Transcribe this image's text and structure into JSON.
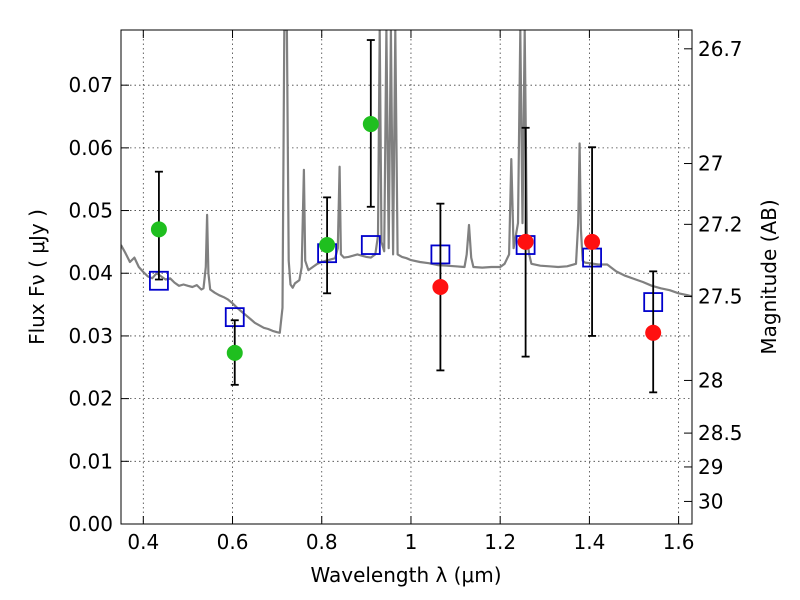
{
  "chart_data": {
    "type": "scatter",
    "title": "",
    "xlabel": "Wavelength  λ (μm)",
    "ylabel": "Flux  Fν  ( μJy )",
    "y2label": "Magnitude (AB)",
    "xlim": [
      0.35,
      1.63
    ],
    "ylim": [
      0.0,
      0.0788
    ],
    "x_ticks": [
      0.4,
      0.6,
      0.8,
      1.0,
      1.2,
      1.4,
      1.6
    ],
    "x_tick_labels": [
      "0.4",
      "0.6",
      "0.8",
      "1",
      "1.2",
      "1.4",
      "1.6"
    ],
    "y_ticks": [
      0.0,
      0.01,
      0.02,
      0.03,
      0.04,
      0.05,
      0.06,
      0.07
    ],
    "y_tick_labels": [
      "0.00",
      "0.01",
      "0.02",
      "0.03",
      "0.04",
      "0.05",
      "0.06",
      "0.07"
    ],
    "y2_ticks": [
      {
        "label": "26.7",
        "flux": 0.0758
      },
      {
        "label": "27",
        "flux": 0.0575
      },
      {
        "label": "27.2",
        "flux": 0.0478
      },
      {
        "label": "27.5",
        "flux": 0.0363
      },
      {
        "label": "28",
        "flux": 0.0229
      },
      {
        "label": "28.5",
        "flux": 0.0145
      },
      {
        "label": "29",
        "flux": 0.0091
      },
      {
        "label": "30",
        "flux": 0.0036
      }
    ],
    "grid": true,
    "colors": {
      "spectrum": "#808080",
      "green": "#1fbf1f",
      "red": "#ff1010",
      "model_box": "#0000cc",
      "errorbar": "#000000"
    },
    "series": [
      {
        "kind": "line",
        "color": "#808080",
        "points": [
          [
            0.35,
            0.0445
          ],
          [
            0.36,
            0.0432
          ],
          [
            0.37,
            0.0418
          ],
          [
            0.38,
            0.0425
          ],
          [
            0.39,
            0.041
          ],
          [
            0.4,
            0.0402
          ],
          [
            0.41,
            0.0395
          ],
          [
            0.42,
            0.0392
          ],
          [
            0.43,
            0.04
          ],
          [
            0.44,
            0.0395
          ],
          [
            0.45,
            0.039
          ],
          [
            0.46,
            0.0392
          ],
          [
            0.47,
            0.0385
          ],
          [
            0.48,
            0.038
          ],
          [
            0.49,
            0.0382
          ],
          [
            0.5,
            0.038
          ],
          [
            0.51,
            0.0378
          ],
          [
            0.52,
            0.0381
          ],
          [
            0.53,
            0.0374
          ],
          [
            0.535,
            0.0376
          ],
          [
            0.54,
            0.041
          ],
          [
            0.543,
            0.0493
          ],
          [
            0.546,
            0.04
          ],
          [
            0.55,
            0.0374
          ],
          [
            0.56,
            0.0369
          ],
          [
            0.57,
            0.0365
          ],
          [
            0.58,
            0.0362
          ],
          [
            0.59,
            0.0358
          ],
          [
            0.6,
            0.0352
          ],
          [
            0.61,
            0.0345
          ],
          [
            0.62,
            0.0339
          ],
          [
            0.63,
            0.0333
          ],
          [
            0.64,
            0.0327
          ],
          [
            0.65,
            0.0321
          ],
          [
            0.66,
            0.0317
          ],
          [
            0.67,
            0.0313
          ],
          [
            0.68,
            0.0311
          ],
          [
            0.69,
            0.0308
          ],
          [
            0.7,
            0.0306
          ],
          [
            0.706,
            0.0305
          ],
          [
            0.712,
            0.0345
          ],
          [
            0.716,
            0.0788
          ],
          [
            0.722,
            0.0788
          ],
          [
            0.726,
            0.042
          ],
          [
            0.73,
            0.0382
          ],
          [
            0.735,
            0.0377
          ],
          [
            0.74,
            0.0384
          ],
          [
            0.75,
            0.0389
          ],
          [
            0.755,
            0.041
          ],
          [
            0.76,
            0.0565
          ],
          [
            0.763,
            0.042
          ],
          [
            0.77,
            0.0405
          ],
          [
            0.78,
            0.041
          ],
          [
            0.79,
            0.0415
          ],
          [
            0.8,
            0.0418
          ],
          [
            0.81,
            0.042
          ],
          [
            0.82,
            0.0422
          ],
          [
            0.83,
            0.0424
          ],
          [
            0.836,
            0.044
          ],
          [
            0.84,
            0.057
          ],
          [
            0.843,
            0.043
          ],
          [
            0.85,
            0.0425
          ],
          [
            0.86,
            0.0426
          ],
          [
            0.87,
            0.0428
          ],
          [
            0.88,
            0.043
          ],
          [
            0.89,
            0.0428
          ],
          [
            0.9,
            0.0426
          ],
          [
            0.91,
            0.0425
          ],
          [
            0.92,
            0.043
          ],
          [
            0.926,
            0.046
          ],
          [
            0.93,
            0.0788
          ],
          [
            0.934,
            0.045
          ],
          [
            0.94,
            0.0435
          ],
          [
            0.945,
            0.0788
          ],
          [
            0.95,
            0.044
          ],
          [
            0.955,
            0.0788
          ],
          [
            0.96,
            0.043
          ],
          [
            0.965,
            0.0788
          ],
          [
            0.97,
            0.043
          ],
          [
            0.98,
            0.0426
          ],
          [
            0.99,
            0.0424
          ],
          [
            1.0,
            0.0421
          ],
          [
            1.02,
            0.0418
          ],
          [
            1.04,
            0.0416
          ],
          [
            1.06,
            0.0413
          ],
          [
            1.08,
            0.0412
          ],
          [
            1.1,
            0.0411
          ],
          [
            1.12,
            0.041
          ],
          [
            1.125,
            0.043
          ],
          [
            1.13,
            0.0477
          ],
          [
            1.135,
            0.0425
          ],
          [
            1.14,
            0.041
          ],
          [
            1.16,
            0.0409
          ],
          [
            1.18,
            0.041
          ],
          [
            1.2,
            0.041
          ],
          [
            1.21,
            0.0415
          ],
          [
            1.22,
            0.043
          ],
          [
            1.225,
            0.0582
          ],
          [
            1.23,
            0.044
          ],
          [
            1.24,
            0.048
          ],
          [
            1.245,
            0.0788
          ],
          [
            1.25,
            0.048
          ],
          [
            1.255,
            0.0788
          ],
          [
            1.26,
            0.046
          ],
          [
            1.265,
            0.043
          ],
          [
            1.27,
            0.0415
          ],
          [
            1.29,
            0.0412
          ],
          [
            1.31,
            0.0411
          ],
          [
            1.33,
            0.041
          ],
          [
            1.35,
            0.0411
          ],
          [
            1.37,
            0.0415
          ],
          [
            1.375,
            0.048
          ],
          [
            1.378,
            0.0607
          ],
          [
            1.381,
            0.047
          ],
          [
            1.385,
            0.042
          ],
          [
            1.39,
            0.0417
          ],
          [
            1.4,
            0.0416
          ],
          [
            1.42,
            0.0414
          ],
          [
            1.44,
            0.0414
          ],
          [
            1.46,
            0.0403
          ],
          [
            1.48,
            0.0396
          ],
          [
            1.5,
            0.0391
          ],
          [
            1.52,
            0.0386
          ],
          [
            1.54,
            0.038
          ],
          [
            1.56,
            0.0376
          ],
          [
            1.58,
            0.0373
          ],
          [
            1.6,
            0.0368
          ],
          [
            1.62,
            0.0365
          ],
          [
            1.63,
            0.0363
          ]
        ]
      },
      {
        "kind": "model-box",
        "color": "#0000cc",
        "points": [
          [
            0.435,
            0.0388
          ],
          [
            0.605,
            0.033
          ],
          [
            0.812,
            0.0432
          ],
          [
            0.91,
            0.0445
          ],
          [
            1.066,
            0.043
          ],
          [
            1.257,
            0.0445
          ],
          [
            1.406,
            0.0425
          ],
          [
            1.543,
            0.0354
          ]
        ]
      },
      {
        "kind": "marker",
        "color": "#1fbf1f",
        "points": [
          [
            0.435,
            0.047
          ],
          [
            0.605,
            0.0273
          ],
          [
            0.812,
            0.0445
          ],
          [
            0.91,
            0.0638
          ]
        ]
      },
      {
        "kind": "marker",
        "color": "#ff1010",
        "points": [
          [
            1.066,
            0.0378
          ],
          [
            1.257,
            0.045
          ],
          [
            1.406,
            0.045
          ],
          [
            1.543,
            0.0305
          ]
        ]
      },
      {
        "kind": "errorbar",
        "color": "#000000",
        "points": [
          [
            0.435,
            0.0562,
            0.039
          ],
          [
            0.605,
            0.0325,
            0.0222
          ],
          [
            0.812,
            0.0521,
            0.0368
          ],
          [
            0.91,
            0.0772,
            0.0506
          ],
          [
            1.066,
            0.0511,
            0.0245
          ],
          [
            1.257,
            0.0632,
            0.0267
          ],
          [
            1.406,
            0.0601,
            0.03
          ],
          [
            1.543,
            0.0403,
            0.021
          ]
        ]
      }
    ]
  }
}
